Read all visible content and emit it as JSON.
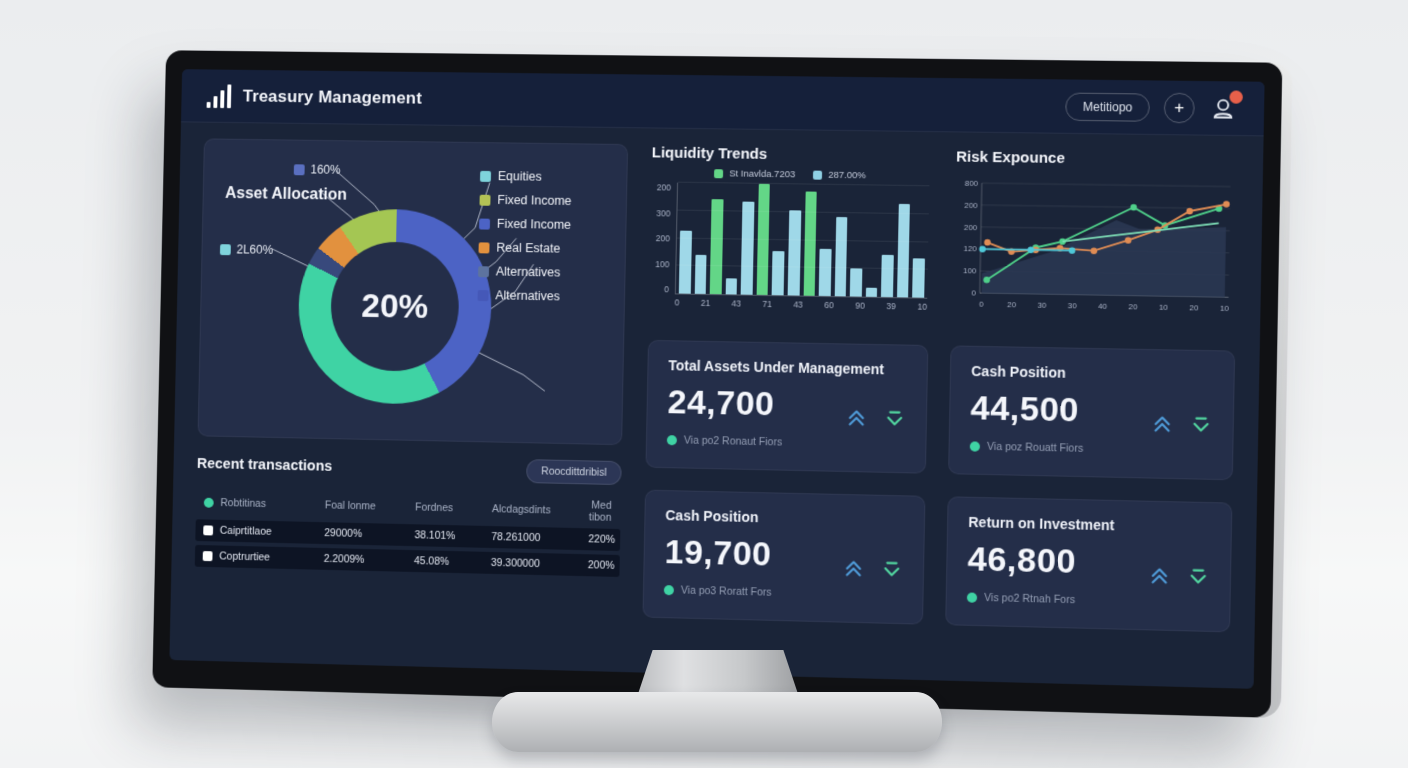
{
  "header": {
    "title": "Treasury Management",
    "menu_button": "Metitiopo",
    "add_button": "+",
    "badge_color": "#e8604a"
  },
  "asset_allocation": {
    "title": "Asset Allocation",
    "center_value": "20%",
    "callouts": [
      {
        "label": "160%",
        "color": "#5a6fc0"
      },
      {
        "label": "2L60%",
        "color": "#7fd4dc"
      }
    ],
    "legend": [
      {
        "label": "Equities",
        "color": "#7fd4dc"
      },
      {
        "label": "Fixed Income",
        "color": "#b3c255"
      },
      {
        "label": "Fixed Income",
        "color": "#4c63c5"
      },
      {
        "label": "Real Estate",
        "color": "#e2913e"
      },
      {
        "label": "Alternatives",
        "color": "#5d739f"
      },
      {
        "label": "Alternatives",
        "color": "#4558b8"
      }
    ],
    "segments": [
      {
        "name": "equities-blue",
        "color": "#4c63c5",
        "pct": 42
      },
      {
        "name": "teal",
        "color": "#3fd3a4",
        "pct": 40
      },
      {
        "name": "navy-sliver",
        "color": "#38497c",
        "pct": 3
      },
      {
        "name": "orange",
        "color": "#e2913e",
        "pct": 5
      },
      {
        "name": "lime",
        "color": "#a4c653",
        "pct": 10
      }
    ]
  },
  "liquidity_trends": {
    "type": "bar",
    "title": "Liquidity Trends",
    "legend": [
      {
        "label": "St Inavlda.7203",
        "color": "#63d687"
      },
      {
        "label": "287.00%",
        "color": "#8fd0e4"
      }
    ],
    "y_ticks": [
      "200",
      "300",
      "200",
      "100",
      "0"
    ],
    "x_ticks": [
      "0",
      "21",
      "43",
      "71",
      "43",
      "60",
      "90",
      "39",
      "10"
    ],
    "bar_colors": {
      "blue": "#9fd8e8",
      "green": "#63d687"
    },
    "bars": [
      {
        "value": 57,
        "color": "blue"
      },
      {
        "value": 35,
        "color": "blue"
      },
      {
        "value": 86,
        "color": "green"
      },
      {
        "value": 14,
        "color": "blue"
      },
      {
        "value": 84,
        "color": "blue"
      },
      {
        "value": 100,
        "color": "green"
      },
      {
        "value": 40,
        "color": "blue"
      },
      {
        "value": 77,
        "color": "blue"
      },
      {
        "value": 94,
        "color": "green"
      },
      {
        "value": 42,
        "color": "blue"
      },
      {
        "value": 71,
        "color": "blue"
      },
      {
        "value": 25,
        "color": "blue"
      },
      {
        "value": 8,
        "color": "blue"
      },
      {
        "value": 38,
        "color": "blue"
      },
      {
        "value": 84,
        "color": "blue"
      },
      {
        "value": 35,
        "color": "blue"
      }
    ]
  },
  "risk_expounce": {
    "type": "line",
    "title": "Risk Expounce",
    "y_ticks": [
      "800",
      "200",
      "200",
      "120",
      "100",
      "0"
    ],
    "x_ticks": [
      "0",
      "20",
      "30",
      "30",
      "40",
      "20",
      "10",
      "20",
      "10"
    ],
    "y_max": 250,
    "area": {
      "color": "#2a3752",
      "points": [
        [
          0,
          45
        ],
        [
          28,
          95
        ],
        [
          55,
          170
        ],
        [
          65,
          150
        ],
        [
          100,
          158
        ]
      ]
    },
    "series": [
      {
        "name": "green",
        "color": "#4fd08a",
        "dots": true,
        "points": [
          [
            2,
            30
          ],
          [
            22,
            105
          ],
          [
            33,
            120
          ],
          [
            62,
            200
          ],
          [
            75,
            160
          ],
          [
            97,
            200
          ]
        ]
      },
      {
        "name": "orange",
        "color": "#e08c54",
        "dots": true,
        "points": [
          [
            2,
            115
          ],
          [
            12,
            95
          ],
          [
            22,
            100
          ],
          [
            32,
            105
          ],
          [
            46,
            100
          ],
          [
            60,
            125
          ],
          [
            72,
            150
          ],
          [
            85,
            193
          ],
          [
            100,
            210
          ]
        ]
      },
      {
        "name": "cyan",
        "color": "#4fc8d8",
        "dots": true,
        "points": [
          [
            0,
            100
          ],
          [
            20,
            100
          ],
          [
            37,
            100
          ]
        ]
      },
      {
        "name": "mint",
        "color": "#7fe0b8",
        "dots": false,
        "points": [
          [
            33,
            120
          ],
          [
            97,
            167
          ]
        ]
      }
    ]
  },
  "cards": [
    {
      "title": "Total Assets Under Management",
      "value": "24,700",
      "note": "Via po2 Ronaut Fiors"
    },
    {
      "title": "Cash Position",
      "value": "44,500",
      "note": "Via poz Rouatt Fiors"
    },
    {
      "title": "Cash Position",
      "value": "19,700",
      "note": "Via po3 Roratt Fors"
    },
    {
      "title": "Return on Investment",
      "value": "46,800",
      "note": "Vis po2 Rtnah Fors"
    }
  ],
  "card_icon_colors": {
    "up": "#4f9bd8",
    "down": "#52d6a0"
  },
  "transactions": {
    "title": "Recent transactions",
    "button_label": "Roocdittdribisl",
    "columns": [
      "Robtitinas",
      "Foal lonme",
      "Fordnes",
      "Alcdagsdints",
      "Med tibon"
    ],
    "rows": [
      [
        "Caiprtitlaoe",
        "29000%",
        "38.101%",
        "78.261000",
        "220%"
      ],
      [
        "Coptrurtiee",
        "2.2009%",
        "45.08%",
        "39.300000",
        "200%"
      ]
    ]
  }
}
